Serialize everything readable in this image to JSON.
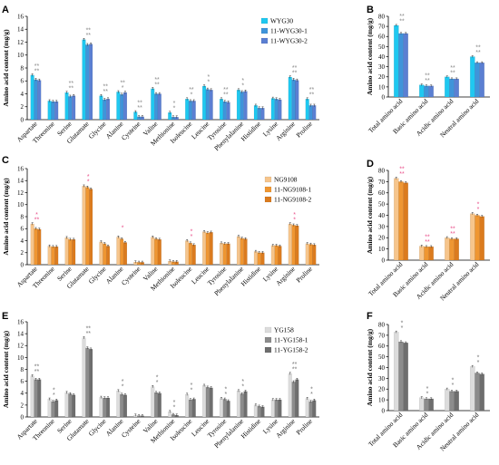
{
  "figure": {
    "panels": [
      {
        "id": "A",
        "label": "A",
        "chart": 0
      },
      {
        "id": "B",
        "label": "B",
        "chart": 1
      },
      {
        "id": "C",
        "label": "C",
        "chart": 2
      },
      {
        "id": "D",
        "label": "D",
        "chart": 3
      },
      {
        "id": "E",
        "label": "E",
        "chart": 4
      },
      {
        "id": "F",
        "label": "F",
        "chart": 5
      }
    ]
  },
  "chart_data": [
    {
      "panel": "A",
      "type": "bar",
      "ylabel": "Amino acid content (mg/g)",
      "ylim": [
        0,
        16
      ],
      "yticks": [
        0,
        2,
        4,
        6,
        8,
        10,
        12,
        14,
        16
      ],
      "categories": [
        "Aspartate",
        "Threonine",
        "Serine",
        "Glutamate",
        "Glycine",
        "Alanine",
        "Cysteine",
        "Valine",
        "Methionine",
        "Isoleucine",
        "Leucine",
        "Tyrosine",
        "Phenylalanine",
        "Histidine",
        "Lysine",
        "Arginine",
        "Proline"
      ],
      "legend_position": "top-right",
      "series": [
        {
          "name": "WYG30",
          "color": "#1fc8f0",
          "values": [
            6.9,
            2.9,
            4.2,
            12.4,
            3.7,
            4.3,
            1.2,
            4.8,
            1.1,
            3.2,
            5.2,
            3.2,
            4.6,
            2.2,
            3.3,
            6.6,
            3.2
          ]
        },
        {
          "name": "11-WYG30-1",
          "color": "#3f94da",
          "values": [
            6.2,
            2.8,
            3.6,
            11.6,
            3.1,
            3.9,
            0.45,
            4.0,
            0.4,
            2.9,
            4.7,
            2.8,
            4.3,
            1.8,
            3.2,
            6.2,
            2.2
          ]
        },
        {
          "name": "11-WYG30-2",
          "color": "#5b7fd2",
          "values": [
            6.1,
            2.8,
            3.7,
            11.7,
            3.2,
            4.2,
            0.45,
            4.0,
            0.4,
            2.9,
            4.6,
            2.7,
            4.4,
            1.8,
            3.1,
            6.1,
            2.2
          ]
        }
      ],
      "significance": [
        [
          "**",
          "**"
        ],
        null,
        [
          "**",
          "**"
        ],
        [
          "**",
          "**"
        ],
        [
          "**",
          "**"
        ],
        [
          "**",
          "*"
        ],
        [
          "**",
          "**"
        ],
        [
          "**",
          "**"
        ],
        [
          "*",
          "*"
        ],
        [
          "**",
          "*"
        ],
        [
          "*",
          "*"
        ],
        [
          "**",
          "**"
        ],
        [
          "*",
          "*"
        ],
        null,
        null,
        [
          "**",
          "**"
        ],
        [
          "**",
          "**"
        ]
      ],
      "star_color": "#888888"
    },
    {
      "panel": "B",
      "type": "bar",
      "ylabel": "Amino acid content (mg/g)",
      "ylim": [
        0,
        80
      ],
      "yticks": [
        0,
        10,
        20,
        30,
        40,
        50,
        60,
        70,
        80
      ],
      "categories": [
        "Total amino acid",
        "Basic amino acid",
        "Acidic amino acid",
        "Neutral amino acid"
      ],
      "series": [
        {
          "name": "WYG30",
          "color": "#1fc8f0",
          "values": [
            71,
            12,
            20,
            40
          ]
        },
        {
          "name": "11-WYG30-1",
          "color": "#3f94da",
          "values": [
            63,
            11,
            18,
            34
          ]
        },
        {
          "name": "11-WYG30-2",
          "color": "#5b7fd2",
          "values": [
            63,
            11,
            18,
            34
          ]
        }
      ],
      "significance": [
        [
          "**",
          "**"
        ],
        [
          "**",
          "**"
        ],
        [
          "**",
          "**"
        ],
        [
          "**",
          "**"
        ]
      ],
      "star_color": "#888888"
    },
    {
      "panel": "C",
      "type": "bar",
      "ylabel": "Amino acid content (mg/g)",
      "ylim": [
        0,
        16
      ],
      "yticks": [
        0,
        2,
        4,
        6,
        8,
        10,
        12,
        14,
        16
      ],
      "categories": [
        "Aspartate",
        "Threonine",
        "Serine",
        "Glutamate",
        "Glycine",
        "Alanine",
        "Cysteine",
        "Valine",
        "Methionine",
        "Isoleucine",
        "Leucine",
        "Tyrosine",
        "Phenylalanine",
        "Histidine",
        "Lysine",
        "Arginine",
        "Proline"
      ],
      "legend_position": "top-right",
      "series": [
        {
          "name": "NG9108",
          "color": "#f6c58c",
          "values": [
            6.8,
            3.1,
            4.5,
            13.1,
            3.8,
            4.6,
            0.45,
            4.6,
            0.6,
            4.0,
            5.5,
            3.6,
            4.7,
            2.2,
            3.2,
            6.8,
            3.5
          ]
        },
        {
          "name": "11-NG9108-1",
          "color": "#ef9632",
          "values": [
            6.0,
            3.0,
            4.2,
            12.9,
            3.5,
            4.3,
            0.4,
            4.3,
            0.5,
            3.6,
            5.3,
            3.5,
            4.4,
            2.0,
            3.2,
            6.6,
            3.4
          ]
        },
        {
          "name": "11-NG9108-2",
          "color": "#db7b1e",
          "values": [
            5.9,
            3.0,
            4.2,
            12.6,
            3.1,
            3.7,
            0.4,
            4.2,
            0.5,
            3.3,
            5.4,
            3.5,
            4.3,
            2.0,
            3.1,
            6.5,
            3.3
          ]
        }
      ],
      "significance": [
        [
          "*",
          "**"
        ],
        null,
        null,
        [
          "*",
          "*"
        ],
        null,
        [
          "*",
          ""
        ],
        null,
        null,
        null,
        [
          "*",
          "*"
        ],
        null,
        null,
        null,
        null,
        null,
        [
          "*",
          "*"
        ],
        null
      ],
      "star_color": "#e9508b"
    },
    {
      "panel": "D",
      "type": "bar",
      "ylabel": "Amino acid content (mg/g)",
      "ylim": [
        0,
        80
      ],
      "yticks": [
        0,
        10,
        20,
        30,
        40,
        50,
        60,
        70,
        80
      ],
      "categories": [
        "Total amino acid",
        "Basic amino acid",
        "Acidic amino acid",
        "Neutral amino acid"
      ],
      "series": [
        {
          "name": "NG9108",
          "color": "#f6c58c",
          "values": [
            73,
            12.5,
            20,
            41.5
          ]
        },
        {
          "name": "11-NG9108-1",
          "color": "#ef9632",
          "values": [
            70,
            12,
            19,
            40
          ]
        },
        {
          "name": "11-NG9108-2",
          "color": "#db7b1e",
          "values": [
            69,
            12,
            19,
            39
          ]
        }
      ],
      "significance": [
        [
          "**",
          "**"
        ],
        [
          "**",
          "**"
        ],
        [
          "**",
          "**"
        ],
        [
          "*",
          "*"
        ]
      ],
      "star_color": "#e9508b"
    },
    {
      "panel": "E",
      "type": "bar",
      "ylabel": "Amino acid content (mg/g)",
      "ylim": [
        0,
        16
      ],
      "yticks": [
        0,
        2,
        4,
        6,
        8,
        10,
        12,
        14,
        16
      ],
      "categories": [
        "Aspartate",
        "Threonine",
        "Serine",
        "Glutamate",
        "Glycine",
        "Alanine",
        "Cysteine",
        "Valine",
        "Methionine",
        "Isoleucine",
        "Leucine",
        "Tyrosine",
        "Phenylalanine",
        "Histidine",
        "Lysine",
        "Arginine",
        "Proline"
      ],
      "legend_position": "top-right",
      "series": [
        {
          "name": "YG158",
          "color": "#dcdcdc",
          "values": [
            6.9,
            3.0,
            4.1,
            13.3,
            3.3,
            4.4,
            0.3,
            5.1,
            0.9,
            3.8,
            5.3,
            3.1,
            4.4,
            2.0,
            2.9,
            7.3,
            3.1
          ]
        },
        {
          "name": "11-YG158-1",
          "color": "#8c8c8c",
          "values": [
            6.3,
            2.6,
            3.9,
            11.6,
            3.2,
            3.8,
            0.2,
            4.1,
            0.4,
            2.9,
            5.0,
            3.0,
            3.9,
            1.8,
            2.9,
            5.9,
            2.6
          ]
        },
        {
          "name": "11-YG158-2",
          "color": "#6e6e6e",
          "values": [
            6.3,
            2.8,
            3.7,
            11.4,
            3.2,
            3.7,
            0.2,
            4.0,
            0.3,
            3.0,
            4.9,
            2.7,
            4.3,
            1.7,
            2.9,
            6.3,
            2.8
          ]
        }
      ],
      "significance": [
        [
          "**",
          "**"
        ],
        [
          "*",
          "*"
        ],
        null,
        [
          "**",
          "**"
        ],
        null,
        [
          "*",
          "*"
        ],
        null,
        [
          "*",
          "*"
        ],
        [
          "*",
          "*"
        ],
        [
          "*",
          "*"
        ],
        null,
        [
          "*",
          "*"
        ],
        [
          "*",
          "*"
        ],
        null,
        null,
        [
          "**",
          "**"
        ],
        [
          "*",
          "*"
        ]
      ],
      "star_color": "#777777"
    },
    {
      "panel": "F",
      "type": "bar",
      "ylabel": "Amino acid content (mg/g)",
      "ylim": [
        0,
        80
      ],
      "yticks": [
        0,
        10,
        20,
        30,
        40,
        50,
        60,
        70,
        80
      ],
      "categories": [
        "Total amino acid",
        "Basic amino acid",
        "Acidic amino acid",
        "Neutral amino acid"
      ],
      "series": [
        {
          "name": "YG158",
          "color": "#dcdcdc",
          "values": [
            73,
            12,
            20,
            41
          ]
        },
        {
          "name": "11-YG158-1",
          "color": "#8c8c8c",
          "values": [
            64,
            11,
            18,
            35
          ]
        },
        {
          "name": "11-YG158-2",
          "color": "#6e6e6e",
          "values": [
            63,
            11,
            18,
            34
          ]
        }
      ],
      "significance": [
        [
          "*",
          "*"
        ],
        [
          "*",
          "*"
        ],
        [
          "*",
          "*"
        ],
        [
          "*",
          "*"
        ]
      ],
      "star_color": "#777777"
    }
  ]
}
